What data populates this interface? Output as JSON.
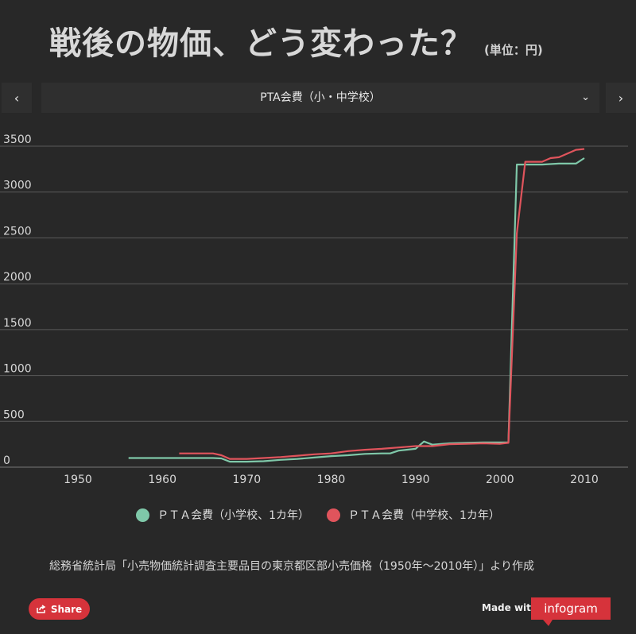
{
  "header": {
    "title": "戦後の物価、どう変わった？",
    "unit": "(単位：円)"
  },
  "selector": {
    "prev_icon": "‹",
    "next_icon": "›",
    "selected": "PTA会費（小・中学校）",
    "chevron": "⌄"
  },
  "chart_data": {
    "type": "line",
    "title": "PTA会費（小・中学校）",
    "xlim": [
      1945,
      2015
    ],
    "ylim": [
      0,
      3500
    ],
    "xticks": [
      1950,
      1960,
      1970,
      1980,
      1990,
      2000,
      2010
    ],
    "yticks": [
      0,
      500,
      1000,
      1500,
      2000,
      2500,
      3000,
      3500
    ],
    "grid": true,
    "legend_position": "bottom",
    "series": [
      {
        "name": "ＰＴＡ会費（小学校、1カ年）",
        "color": "#7fc8a9",
        "x": [
          1956,
          1960,
          1966,
          1967,
          1968,
          1970,
          1972,
          1974,
          1976,
          1978,
          1980,
          1982,
          1984,
          1986,
          1987,
          1988,
          1990,
          1991,
          1992,
          1994,
          1996,
          1998,
          2000,
          2001,
          2002,
          2003,
          2005,
          2007,
          2009,
          2010
        ],
        "values": [
          100,
          100,
          100,
          95,
          60,
          60,
          65,
          80,
          90,
          105,
          120,
          130,
          145,
          150,
          150,
          180,
          200,
          280,
          245,
          260,
          265,
          270,
          270,
          270,
          3300,
          3300,
          3300,
          3310,
          3310,
          3370
        ]
      },
      {
        "name": "ＰＴＡ会費（中学校、1カ年）",
        "color": "#e0545c",
        "x": [
          1962,
          1966,
          1967,
          1968,
          1970,
          1972,
          1974,
          1976,
          1978,
          1980,
          1982,
          1984,
          1986,
          1988,
          1990,
          1992,
          1994,
          1996,
          1998,
          2000,
          2001,
          2002,
          2003,
          2005,
          2006,
          2007,
          2008,
          2009,
          2010
        ],
        "values": [
          150,
          150,
          130,
          90,
          90,
          100,
          110,
          125,
          140,
          150,
          175,
          190,
          200,
          215,
          230,
          230,
          250,
          255,
          260,
          255,
          265,
          2550,
          3330,
          3330,
          3370,
          3380,
          3420,
          3460,
          3470
        ]
      }
    ]
  },
  "source": "総務省統計局「小売物価統計調査主要品目の東京都区部小売価格（1950年〜2010年）」より作成",
  "footer": {
    "share_label": "Share",
    "made_with": "Made with",
    "brand": "infogram"
  }
}
